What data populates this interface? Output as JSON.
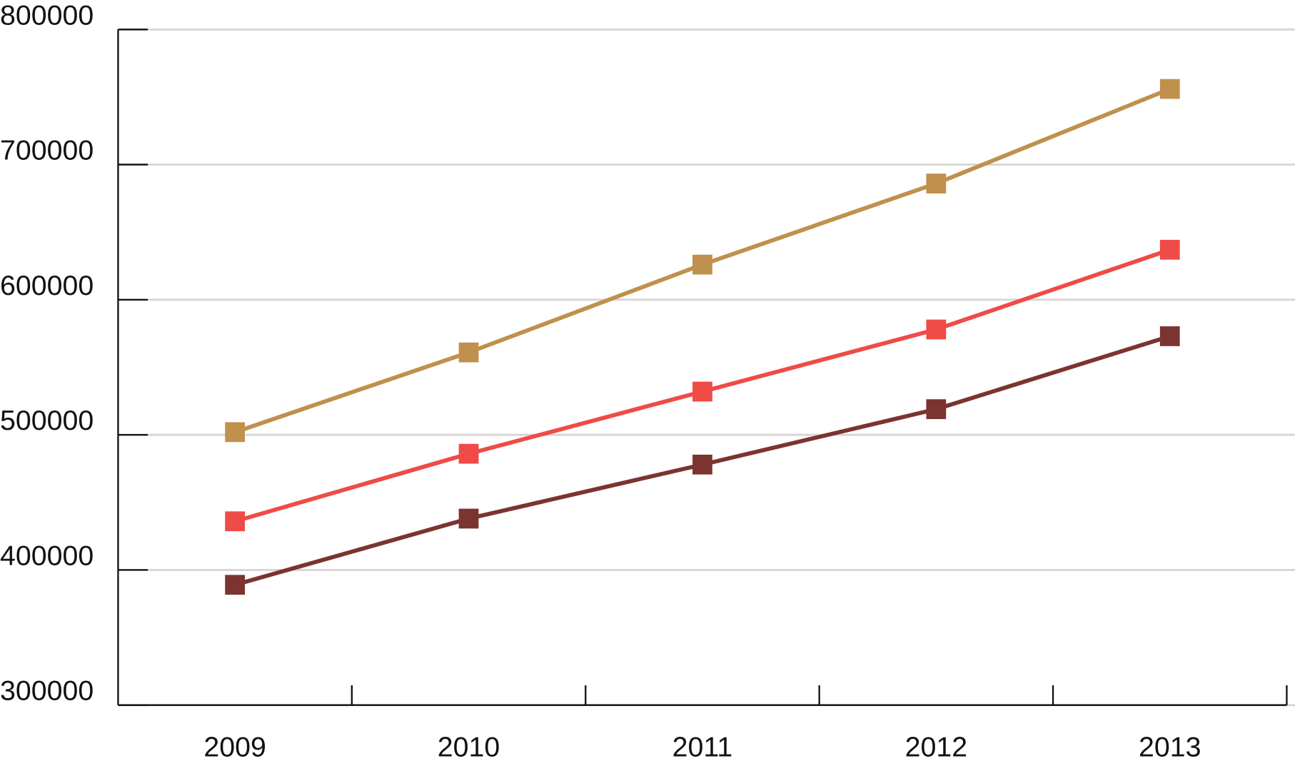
{
  "chart_data": {
    "type": "line",
    "categories": [
      "2009",
      "2010",
      "2011",
      "2012",
      "2013"
    ],
    "series": [
      {
        "color": "#c0904d",
        "values": [
          502000,
          561000,
          626000,
          686000,
          756000
        ]
      },
      {
        "color": "#ef4b47",
        "values": [
          436000,
          486000,
          532000,
          578000,
          637000
        ]
      },
      {
        "color": "#7b3430",
        "values": [
          389000,
          438000,
          478000,
          519000,
          573000
        ]
      }
    ],
    "ylim": [
      300000,
      800000
    ],
    "yticks": [
      300000,
      400000,
      500000,
      600000,
      700000,
      800000
    ],
    "grid": true
  }
}
